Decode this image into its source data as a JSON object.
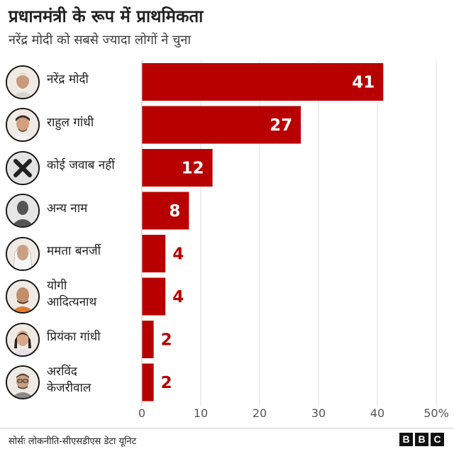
{
  "title": "प्रधानमंत्री के रूप में प्राथमिकता",
  "subtitle": "नरेंद्र मोदी को सबसे ज्यादा लोगों ने चुना",
  "source": "सोर्सः लोकनीति-सीएसडीएस डेटा यूनिट",
  "logo": [
    "B",
    "B",
    "C"
  ],
  "colors": {
    "bar": "#b80000",
    "label_inside": "#ffffff",
    "label_outside": "#b80000",
    "grid": "#dddddd"
  },
  "rows": [
    {
      "label_lines": [
        "नरेंद्र मोदी"
      ],
      "icon": "modi-portrait-icon"
    },
    {
      "label_lines": [
        "राहुल गांधी"
      ],
      "icon": "rahul-portrait-icon"
    },
    {
      "label_lines": [
        "कोई जवाब नहीं"
      ],
      "icon": "x-mark-icon"
    },
    {
      "label_lines": [
        "अन्य नाम"
      ],
      "icon": "person-silhouette-icon"
    },
    {
      "label_lines": [
        "ममता बनर्जी"
      ],
      "icon": "mamata-portrait-icon"
    },
    {
      "label_lines": [
        "योगी",
        "आदित्यनाथ"
      ],
      "icon": "yogi-portrait-icon"
    },
    {
      "label_lines": [
        "प्रियंका गांधी"
      ],
      "icon": "priyanka-portrait-icon"
    },
    {
      "label_lines": [
        "अरविंद",
        "केजरीवाल"
      ],
      "icon": "kejriwal-portrait-icon"
    }
  ],
  "chart_data": {
    "type": "bar",
    "orientation": "horizontal",
    "categories": [
      "नरेंद्र मोदी",
      "राहुल गांधी",
      "कोई जवाब नहीं",
      "अन्य नाम",
      "ममता बनर्जी",
      "योगी आदित्यनाथ",
      "प्रियंका गांधी",
      "अरविंद केजरीवाल"
    ],
    "values": [
      41,
      27,
      12,
      8,
      4,
      4,
      2,
      2
    ],
    "xticks": [
      "0",
      "10",
      "20",
      "30",
      "40",
      "50%"
    ],
    "xlim": [
      0,
      50
    ],
    "grid": true
  }
}
